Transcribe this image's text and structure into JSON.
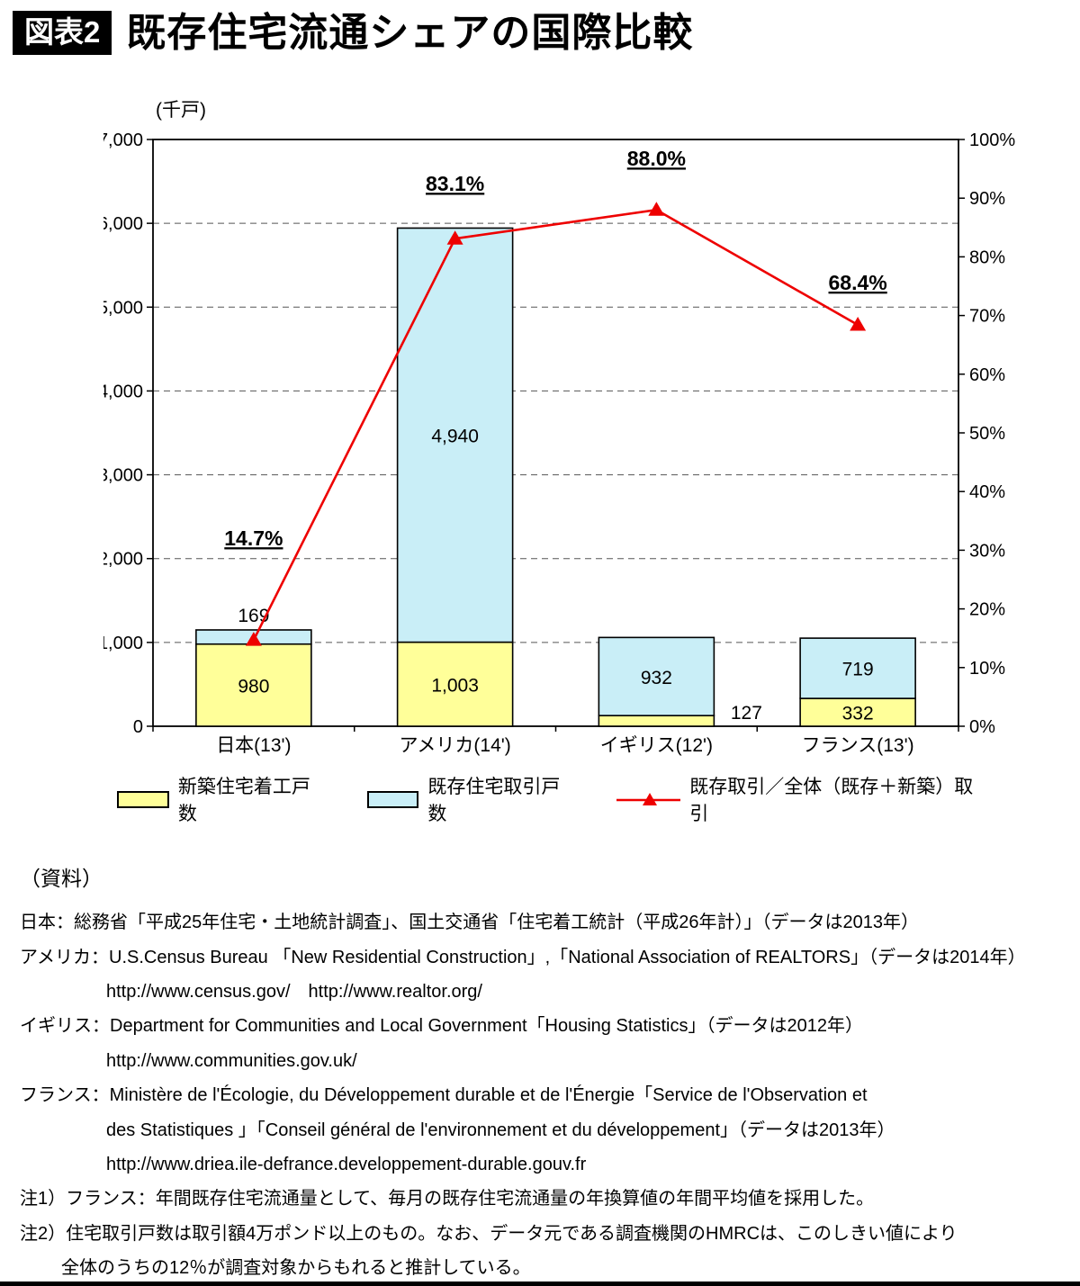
{
  "header": {
    "tag": "図表2",
    "title": "既存住宅流通シェアの国際比較"
  },
  "chart_data": {
    "type": "bar+line",
    "unit_label": "(千戸)",
    "categories": [
      "日本(13')",
      "アメリカ(14')",
      "イギリス(12')",
      "フランス(13')"
    ],
    "series": [
      {
        "name": "新築住宅着工戸数",
        "type": "bar",
        "stack": "housing",
        "color": "#ffff99",
        "values": [
          980,
          1003,
          127,
          332
        ],
        "labels": [
          "980",
          "1,003",
          "127",
          "332"
        ]
      },
      {
        "name": "既存住宅取引戸数",
        "type": "bar",
        "stack": "housing",
        "color": "#c9eef7",
        "values": [
          169,
          4940,
          932,
          719
        ],
        "labels": [
          "169",
          "4,940",
          "932",
          "719"
        ]
      },
      {
        "name": "既存取引／全体（既存＋新築）取引",
        "type": "line",
        "axis": "right",
        "color": "#ee0000",
        "values": [
          14.7,
          83.1,
          88.0,
          68.4
        ],
        "labels": [
          "14.7%",
          "83.1%",
          "88.0%",
          "68.4%"
        ]
      }
    ],
    "y_left": {
      "min": 0,
      "max": 7000,
      "step": 1000
    },
    "y_right": {
      "min": 0,
      "max": 100,
      "step": 10
    },
    "grid": "dashed-horizontal",
    "legend_position": "bottom"
  },
  "sources": {
    "heading": "（資料）",
    "lines": [
      {
        "text": "日本：総務省「平成25年住宅・土地統計調査」、国土交通省「住宅着工統計（平成26年計）」（データは2013年）"
      },
      {
        "text": "アメリカ：U.S.Census Bureau 「New Residential Construction」,「National Association of REALTORS」（データは2014年）"
      },
      {
        "text": "http://www.census.gov/　http://www.realtor.org/"
      },
      {
        "text": "イギリス：Department for Communities and Local Government「Housing Statistics」（データは2012年）"
      },
      {
        "text": "http://www.communities.gov.uk/"
      },
      {
        "text": "フランス：Ministère de l'Écologie, du Développement durable et de l'Énergie「Service de l'Observation et"
      },
      {
        "text": "des Statistiques 」「Conseil général de l'environnement et du développement」（データは2013年）"
      },
      {
        "text": "http://www.driea.ile-defrance.developpement-durable.gouv.fr"
      },
      {
        "text": "注1）フランス：年間既存住宅流通量として、毎月の既存住宅流通量の年換算値の年間平均値を採用した。"
      },
      {
        "text": "注2）住宅取引戸数は取引額4万ポンド以上のもの。なお、データ元である調査機関のHMRCは、このしきい値により"
      },
      {
        "text": "全体のうちの12％が調査対象からもれると推計している。"
      }
    ]
  }
}
